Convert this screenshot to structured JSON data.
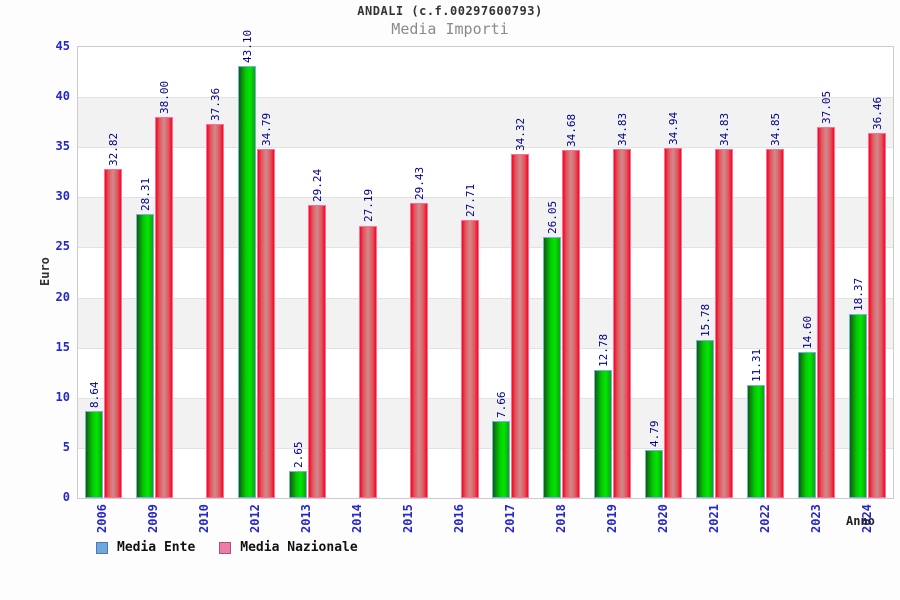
{
  "title": "ANDALI (c.f.00297600793)",
  "subtitle": "Media Importi",
  "chart_data": {
    "type": "bar",
    "categories": [
      "2006",
      "2009",
      "2010",
      "2012",
      "2013",
      "2014",
      "2015",
      "2016",
      "2017",
      "2018",
      "2019",
      "2020",
      "2021",
      "2022",
      "2023",
      "2024"
    ],
    "series": [
      {
        "name": "Media Ente",
        "values": [
          8.64,
          28.31,
          null,
          43.1,
          2.65,
          null,
          null,
          null,
          7.66,
          26.05,
          12.78,
          4.79,
          15.78,
          11.31,
          14.6,
          18.37
        ],
        "labels": [
          "8.64",
          "28.31",
          null,
          "43.10",
          "2.65",
          null,
          null,
          null,
          "7.66",
          "26.05",
          "12.78",
          "4.79",
          "15.78",
          "11.31",
          "14.60",
          "18.37"
        ]
      },
      {
        "name": "Media Nazionale",
        "values": [
          32.82,
          38.0,
          37.36,
          34.79,
          29.24,
          27.19,
          29.43,
          27.71,
          34.32,
          34.68,
          34.83,
          34.94,
          34.83,
          34.85,
          37.05,
          36.46
        ],
        "labels": [
          "32.82",
          "38.00",
          "37.36",
          "34.79",
          "29.24",
          "27.19",
          "29.43",
          "27.71",
          "34.32",
          "34.68",
          "34.83",
          "34.94",
          "34.83",
          "34.85",
          "37.05",
          "36.46"
        ]
      }
    ],
    "xlabel": "Anno",
    "ylabel": "Euro",
    "ylim": [
      0,
      45
    ],
    "yticks": [
      0,
      5,
      10,
      15,
      20,
      25,
      30,
      35,
      40,
      45
    ],
    "grid": "horizontal-bands",
    "legend_position": "bottom-left"
  },
  "colors": {
    "tick_label": "#2626cc",
    "value_label": "#00008b",
    "media_ente_bar_gradient": [
      "#0e5e0e",
      "#06c606",
      "#00e800",
      "#12a012"
    ],
    "media_ente_bar_border": "#79b2e2",
    "media_ente_legend_fill": "#6fa8dc",
    "media_ente_legend_border": "#4a7ab5",
    "media_nazionale_bar_gradient": [
      "#f00a1e",
      "#e25560",
      "#cf8b8b",
      "#e25560",
      "#f00a1e"
    ],
    "media_nazionale_bar_border": "#ff6f9c",
    "media_nazionale_legend_fill": "#ee7ca6",
    "media_nazionale_legend_border": "#a85677",
    "band_gray": "#f2f2f2",
    "gridline": "#e2e2e2",
    "plot_border": "#cccccc"
  }
}
